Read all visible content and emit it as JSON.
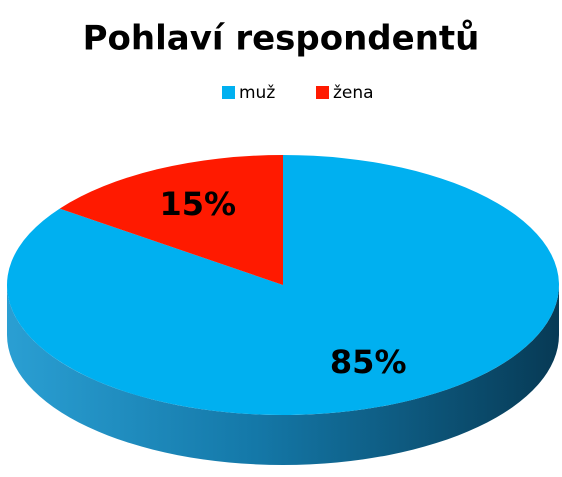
{
  "chart_data": {
    "type": "pie",
    "title": "Pohlaví respondentů",
    "categories": [
      "muž",
      "žena"
    ],
    "values": [
      85,
      15
    ],
    "value_labels": [
      "85%",
      "15%"
    ],
    "colors": [
      "#00b0f0",
      "#ff1a00"
    ],
    "legend": "top"
  }
}
